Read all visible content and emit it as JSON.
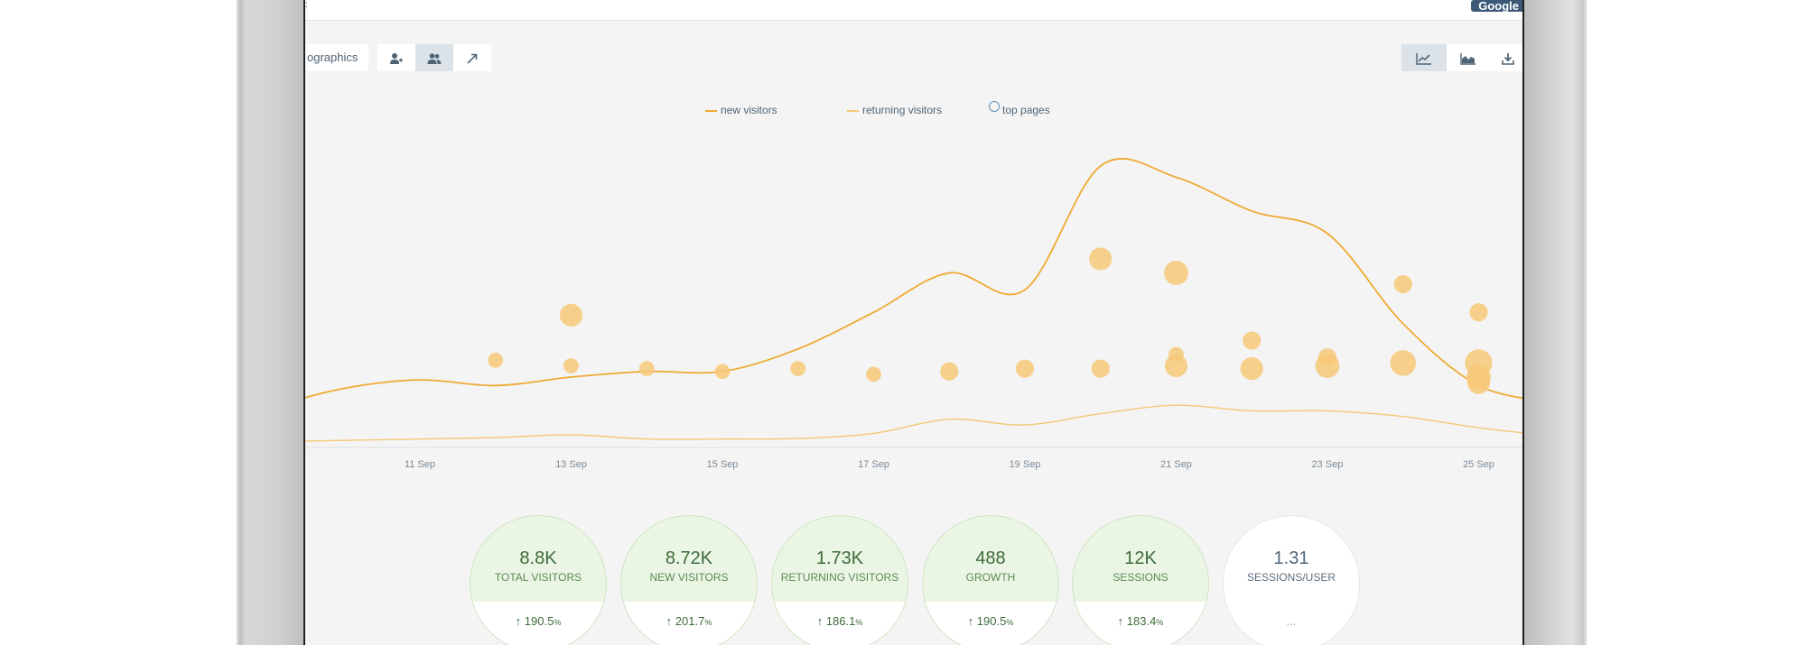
{
  "window": {
    "brand_badge": "Google",
    "corner_mark": ":"
  },
  "toolbar": {
    "demographics_label": "ographics",
    "left_icons": [
      "add-user-icon",
      "users-icon",
      "trend-arrow-icon"
    ],
    "right_icons": [
      "line-chart-icon",
      "area-chart-icon",
      "download-icon"
    ]
  },
  "legend": {
    "new_visitors": "new visitors",
    "returning_visitors": "returning visitors",
    "top_pages": "top pages"
  },
  "colors": {
    "new_line": "#eeaa33",
    "returning_line": "#f5c878",
    "bubble_fill": "#f6c878",
    "stat_green_bg": "#eaf5e3",
    "stat_text": "#3e6b3b"
  },
  "chart_data": {
    "type": "line",
    "title": "",
    "xlabel": "",
    "ylabel": "",
    "x_ticks": [
      "11 Sep",
      "13 Sep",
      "15 Sep",
      "17 Sep",
      "19 Sep",
      "21 Sep",
      "23 Sep",
      "25 Sep"
    ],
    "x_range": [
      8,
      26
    ],
    "ylim": [
      0,
      100
    ],
    "series": [
      {
        "name": "new visitors",
        "x": [
          8,
          9,
          10,
          11,
          12,
          13,
          14,
          15,
          16,
          17,
          18,
          19,
          20,
          21,
          22,
          23,
          24,
          25,
          26
        ],
        "values": [
          6,
          14,
          21,
          24,
          22,
          25,
          27,
          27,
          35,
          48,
          62,
          56,
          100,
          96,
          84,
          76,
          44,
          22,
          16
        ]
      },
      {
        "name": "returning visitors",
        "x": [
          8,
          9,
          10,
          11,
          12,
          13,
          14,
          15,
          16,
          17,
          18,
          19,
          20,
          21,
          22,
          23,
          24,
          25,
          26
        ],
        "values": [
          1,
          2,
          2.5,
          3,
          3.5,
          4.5,
          3,
          3,
          3.2,
          5,
          10,
          8,
          12,
          15,
          13,
          13,
          11,
          7,
          4
        ]
      }
    ],
    "bubbles": {
      "name": "top pages",
      "x": [
        12,
        13,
        13,
        14,
        15,
        16,
        17,
        18,
        19,
        20,
        20,
        21,
        21,
        21,
        22,
        22,
        23,
        23,
        24,
        24,
        25,
        25,
        25,
        25
      ],
      "y": [
        31,
        47,
        29,
        28,
        27,
        28,
        26,
        27,
        28,
        28,
        67,
        62,
        33,
        29,
        28,
        38,
        32,
        29,
        30,
        58,
        48,
        30,
        25,
        23
      ],
      "sizes": [
        2,
        3,
        2,
        2,
        2,
        2,
        2,
        2.4,
        2.4,
        2.4,
        3,
        3.2,
        2,
        3,
        3,
        2.4,
        2.4,
        3.2,
        3.4,
        2.4,
        2.4,
        3.6,
        3.2,
        3
      ]
    }
  },
  "stats": [
    {
      "value": "8.8K",
      "label": "Total Visitors",
      "change": "190.5",
      "unit": "%"
    },
    {
      "value": "8.72K",
      "label": "New Visitors",
      "change": "201.7",
      "unit": "%"
    },
    {
      "value": "1.73K",
      "label": "Returning Visitors",
      "change": "186.1",
      "unit": "%"
    },
    {
      "value": "488",
      "label": "Growth",
      "change": "190.5",
      "unit": "%"
    },
    {
      "value": "12K",
      "label": "Sessions",
      "change": "183.4",
      "unit": "%"
    },
    {
      "value": "1.31",
      "label": "Sessions/User",
      "change": "...",
      "unit": ""
    }
  ]
}
